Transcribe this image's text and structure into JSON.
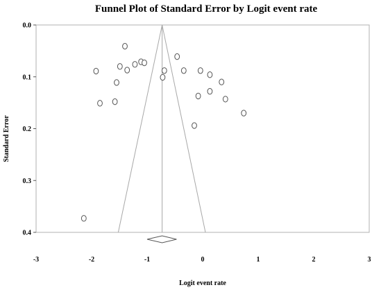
{
  "chart_data": {
    "type": "scatter",
    "title": "Funnel Plot of Standard Error by Logit event rate",
    "xlabel": "Logit event rate",
    "ylabel": "Standard Error",
    "xlim": [
      -3,
      3
    ],
    "ylim": [
      0,
      0.4
    ],
    "y_inverted": true,
    "x_ticks": [
      "-3",
      "-2",
      "-1",
      "0",
      "1",
      "2",
      "3"
    ],
    "y_ticks": [
      "0.0",
      "0.1",
      "0.2",
      "0.3",
      "0.4"
    ],
    "grid": false,
    "legend": "none",
    "summary_estimate": -0.73,
    "summary_diamond": {
      "lower": -1.0,
      "upper": -0.47
    },
    "funnel_bounds_at_max_se": {
      "lower": -1.52,
      "upper": 0.05
    },
    "points": [
      {
        "x": -1.4,
        "y": 0.041
      },
      {
        "x": -1.92,
        "y": 0.089
      },
      {
        "x": -1.49,
        "y": 0.08
      },
      {
        "x": -1.36,
        "y": 0.087
      },
      {
        "x": -1.22,
        "y": 0.076
      },
      {
        "x": -1.11,
        "y": 0.071
      },
      {
        "x": -1.05,
        "y": 0.073
      },
      {
        "x": -1.55,
        "y": 0.111
      },
      {
        "x": -1.85,
        "y": 0.151
      },
      {
        "x": -1.58,
        "y": 0.148
      },
      {
        "x": -0.72,
        "y": 0.101
      },
      {
        "x": -0.69,
        "y": 0.088
      },
      {
        "x": -0.46,
        "y": 0.061
      },
      {
        "x": -0.34,
        "y": 0.088
      },
      {
        "x": -0.04,
        "y": 0.088
      },
      {
        "x": 0.13,
        "y": 0.096
      },
      {
        "x": 0.34,
        "y": 0.11
      },
      {
        "x": -0.08,
        "y": 0.137
      },
      {
        "x": 0.13,
        "y": 0.128
      },
      {
        "x": 0.41,
        "y": 0.143
      },
      {
        "x": -0.15,
        "y": 0.194
      },
      {
        "x": 0.74,
        "y": 0.17
      },
      {
        "x": -2.14,
        "y": 0.373
      }
    ]
  }
}
